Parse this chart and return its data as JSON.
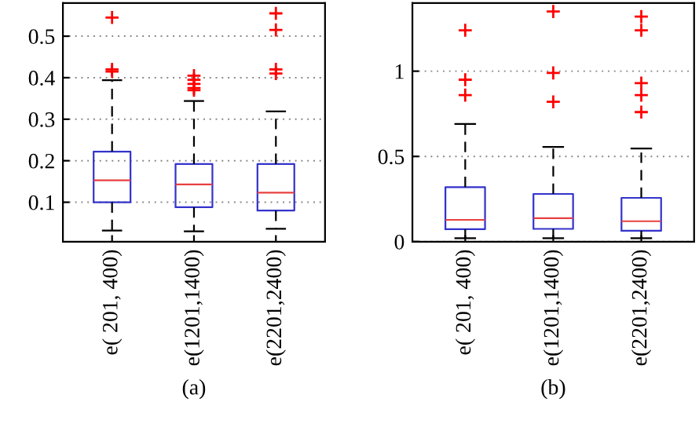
{
  "chart_data": [
    {
      "type": "box",
      "xlabel": "(a)",
      "categories": [
        "e( 201, 400)",
        "e(1201,1400)",
        "e(2201,2400)"
      ],
      "ylim": [
        0.005,
        0.58
      ],
      "yticks": [
        0.1,
        0.2,
        0.3,
        0.4,
        0.5
      ],
      "grid": "y",
      "color": "#3333cc",
      "boxes": [
        {
          "low": 0.032,
          "q1": 0.1,
          "median": 0.153,
          "q3": 0.222,
          "high": 0.394,
          "outliers": [
            0.415,
            0.42,
            0.545
          ]
        },
        {
          "low": 0.03,
          "q1": 0.088,
          "median": 0.143,
          "q3": 0.192,
          "high": 0.344,
          "outliers": [
            0.37,
            0.375,
            0.385,
            0.395,
            0.405
          ]
        },
        {
          "low": 0.036,
          "q1": 0.08,
          "median": 0.123,
          "q3": 0.192,
          "high": 0.319,
          "outliers": [
            0.41,
            0.42,
            0.515,
            0.555
          ]
        }
      ]
    },
    {
      "type": "box",
      "xlabel": "(b)",
      "categories": [
        "e( 201, 400)",
        "e(1201,1400)",
        "e(2201,2400)"
      ],
      "ylim": [
        0,
        1.4
      ],
      "yticks": [
        0,
        0.5,
        1
      ],
      "grid": "y",
      "color": "#3333cc",
      "boxes": [
        {
          "low": 0.02,
          "q1": 0.073,
          "median": 0.128,
          "q3": 0.32,
          "high": 0.69,
          "outliers": [
            0.86,
            0.95,
            1.24
          ]
        },
        {
          "low": 0.02,
          "q1": 0.075,
          "median": 0.138,
          "q3": 0.28,
          "high": 0.556,
          "outliers": [
            0.82,
            0.99,
            1.35
          ]
        },
        {
          "low": 0.02,
          "q1": 0.064,
          "median": 0.12,
          "q3": 0.257,
          "high": 0.547,
          "outliers": [
            0.76,
            0.86,
            0.93,
            1.24,
            1.32
          ]
        }
      ]
    }
  ]
}
